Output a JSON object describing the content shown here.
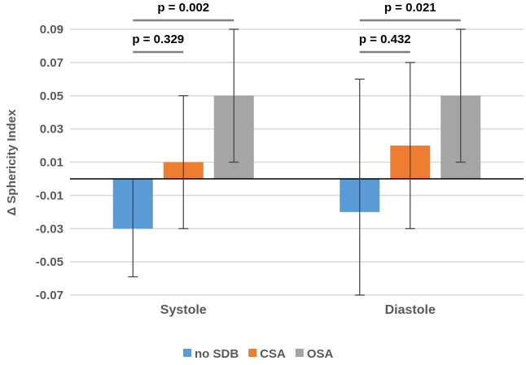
{
  "chart_data": {
    "type": "bar",
    "title": "",
    "xlabel": "",
    "ylabel": "Δ Sphericity Index",
    "ylim": [
      -0.07,
      0.09
    ],
    "yticks": [
      "0.09",
      "0.07",
      "0.05",
      "0.03",
      "0.01",
      "-0.01",
      "-0.03",
      "-0.05",
      "-0.07"
    ],
    "ytick_values": [
      0.09,
      0.07,
      0.05,
      0.03,
      0.01,
      -0.01,
      -0.03,
      -0.05,
      -0.07
    ],
    "grid": true,
    "legend_position": "bottom",
    "categories": [
      "Systole",
      "Diastole"
    ],
    "series": [
      {
        "name": "no SDB",
        "color": "#5B9BD5",
        "values": [
          -0.03,
          -0.02
        ],
        "error_low": [
          -0.059,
          -0.07
        ],
        "error_high": [
          0.0,
          0.06
        ]
      },
      {
        "name": "CSA",
        "color": "#ED7D31",
        "values": [
          0.01,
          0.02
        ],
        "error_low": [
          -0.03,
          -0.03
        ],
        "error_high": [
          0.05,
          0.07
        ]
      },
      {
        "name": "OSA",
        "color": "#A5A5A5",
        "values": [
          0.05,
          0.05
        ],
        "error_low": [
          0.01,
          0.01
        ],
        "error_high": [
          0.09,
          0.09
        ]
      }
    ],
    "annotations": [
      {
        "category": "Systole",
        "from": "no SDB",
        "to": "OSA",
        "label": "p = 0.002"
      },
      {
        "category": "Systole",
        "from": "no SDB",
        "to": "CSA",
        "label": "p = 0.329"
      },
      {
        "category": "Diastole",
        "from": "no SDB",
        "to": "OSA",
        "label": "p = 0.021"
      },
      {
        "category": "Diastole",
        "from": "no SDB",
        "to": "CSA",
        "label": "p = 0.432"
      }
    ]
  }
}
